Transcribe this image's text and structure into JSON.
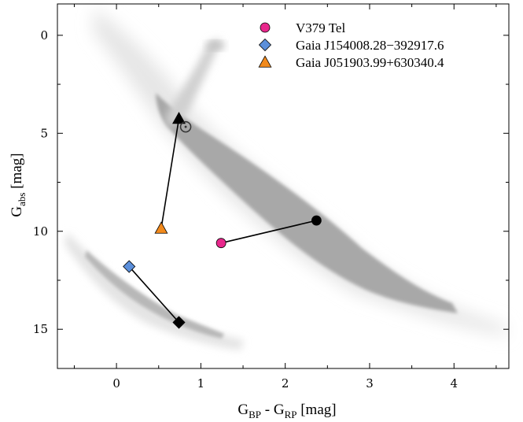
{
  "chart_data": {
    "type": "scatter",
    "title": "",
    "xlabel": {
      "main": "G",
      "sub1": "BP",
      "mid": " - G",
      "sub2": "RP",
      "unit": " [mag]"
    },
    "ylabel": {
      "main": "G",
      "sub": "abs",
      "unit": " [mag]"
    },
    "xlim": [
      -0.7,
      4.65
    ],
    "ylim": [
      17.0,
      -1.6
    ],
    "y_inverted": true,
    "xticks": [
      0,
      1,
      2,
      3,
      4
    ],
    "yticks": [
      0,
      5,
      10,
      15
    ],
    "grid": false,
    "legend_position": "top-right",
    "background_population": {
      "description": "grey density of field stars",
      "main_sequence": [
        [
          0.6,
          3.0
        ],
        [
          0.9,
          5.0
        ],
        [
          1.5,
          7.0
        ],
        [
          2.2,
          9.5
        ],
        [
          3.0,
          12.0
        ],
        [
          3.6,
          13.5
        ],
        [
          4.4,
          15.5
        ]
      ],
      "white_dwarf_sequence": [
        [
          -0.4,
          10.3
        ],
        [
          0.1,
          12.0
        ],
        [
          0.7,
          14.3
        ],
        [
          1.3,
          15.0
        ]
      ],
      "giant_branch": [
        [
          0.9,
          3.0
        ],
        [
          1.1,
          1.5
        ],
        [
          1.3,
          0.3
        ]
      ],
      "color": "#b3b3b3"
    },
    "series": [
      {
        "name": "V379 Tel",
        "marker": "circle",
        "color": "#e8288c",
        "points": [
          {
            "x": 1.24,
            "y": 10.6
          },
          {
            "x": 2.37,
            "y": 9.45
          }
        ]
      },
      {
        "name": "Gaia J154008.28−392917.6",
        "marker": "diamond",
        "color": "#5b8fdb",
        "points": [
          {
            "x": 0.15,
            "y": 11.8
          },
          {
            "x": 0.74,
            "y": 14.65
          }
        ]
      },
      {
        "name": "Gaia J051903.99+630340.4",
        "marker": "triangle",
        "color": "#f28a1c",
        "points": [
          {
            "x": 0.53,
            "y": 9.85
          },
          {
            "x": 0.74,
            "y": 4.25
          }
        ]
      }
    ],
    "annotations": [
      {
        "type": "sun-symbol",
        "x": 0.82,
        "y": 4.67
      }
    ]
  }
}
